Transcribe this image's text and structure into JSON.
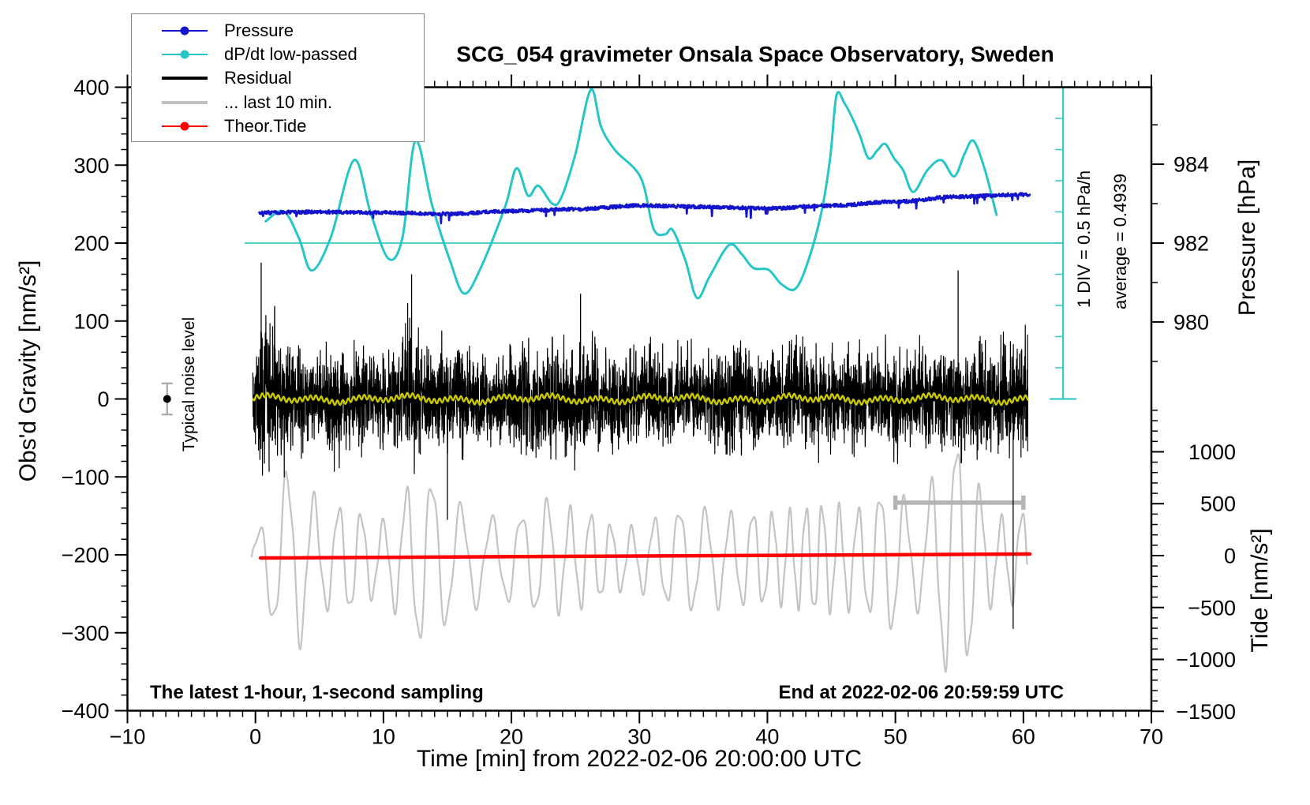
{
  "title": "SCG_054 gravimeter Onsala Space Observatory, Sweden",
  "legend": {
    "items": [
      {
        "label": "Pressure",
        "color": "#1414cd",
        "line_thickness": 2,
        "dot": true
      },
      {
        "label": "dP/dt low-passed",
        "color": "#26c6c6",
        "line_thickness": 2,
        "dot": true
      },
      {
        "label": "Residual",
        "color": "#000000",
        "line_thickness": 4,
        "dot": false
      },
      {
        "label": "... last 10 min.",
        "color": "#c0c0c0",
        "line_thickness": 4,
        "dot": false
      },
      {
        "label": "Theor.Tide",
        "color": "#ff0000",
        "line_thickness": 2,
        "dot": true
      }
    ]
  },
  "annotations": {
    "noise_marker_label": "Typical noise level",
    "div_scale_label": "1 DIV = 0.5 hPa/h",
    "average_label": "average = 0.4939",
    "sampling_note": "The latest 1-hour, 1-second sampling",
    "end_note": "End at 2022-02-06 20:59:59 UTC"
  },
  "chart_data": {
    "type": "line",
    "title": "SCG_054 gravimeter Onsala Space Observatory, Sweden",
    "xlabel": "Time [min] from 2022-02-06 20:00:00 UTC",
    "ylabel_left": "Obs'd Gravity [nm/s²]",
    "ylabel_right_top": "Pressure [hPa]",
    "ylabel_right_bottom": "Tide [nm/s²]",
    "x_axis": {
      "min": -10,
      "max": 70,
      "major_ticks": [
        -10,
        0,
        10,
        20,
        30,
        40,
        50,
        60,
        70
      ],
      "minor_tick_step": 1
    },
    "y_axis_gravity": {
      "min": -400,
      "max": 400,
      "major_ticks": [
        -400,
        -300,
        -200,
        -100,
        0,
        100,
        200,
        300,
        400
      ],
      "minor_tick_step": 20
    },
    "y_axis_pressure": {
      "major_ticks": [
        980,
        982,
        984
      ],
      "minor_ticks": [
        979,
        981,
        983,
        985
      ]
    },
    "y_axis_tide": {
      "major_ticks": [
        -1500,
        -1000,
        -500,
        0,
        500,
        1000
      ],
      "minor_tick_step": 100,
      "minor_min": -1500,
      "minor_max": 1400
    },
    "axis_mapping": {
      "pressure_ref": {
        "hPa": 982,
        "gravity": 200,
        "gravity_per_hPa": 50.6
      },
      "dpdt_ref": {
        "zero_at_gravity": 200,
        "gravity_per_hPa_per_h": 80,
        "hPa_per_h_per_div": 0.5,
        "divisions": 10
      },
      "tide_ref": {
        "gravity_at_zero": -201,
        "gravity_per_tide_unit": 0.1332
      }
    },
    "series": {
      "pressure": {
        "name": "Pressure",
        "color": "#1414cd",
        "axis": "hPa",
        "x_minutes": [
          0,
          5,
          10,
          15,
          20,
          25,
          30,
          35,
          40,
          45,
          50,
          55,
          60
        ],
        "hPa": [
          982.77,
          982.79,
          982.77,
          982.74,
          982.81,
          982.86,
          982.95,
          982.92,
          982.88,
          982.95,
          983.05,
          983.18,
          983.23
        ]
      },
      "dpdt": {
        "name": "dP/dt low-passed",
        "color": "#26c6c6",
        "axis": "hPa_per_h",
        "points_t_v": [
          [
            0.8,
            0.35
          ],
          [
            2.2,
            0.51
          ],
          [
            3.4,
            0.08
          ],
          [
            4.4,
            -0.44
          ],
          [
            5.9,
            0.1
          ],
          [
            7.7,
            1.33
          ],
          [
            9.0,
            0.48
          ],
          [
            10.4,
            -0.25
          ],
          [
            11.5,
            0.1
          ],
          [
            12.5,
            1.64
          ],
          [
            13.8,
            0.61
          ],
          [
            15.2,
            -0.28
          ],
          [
            16.3,
            -0.81
          ],
          [
            17.6,
            -0.4
          ],
          [
            19.5,
            0.58
          ],
          [
            20.4,
            1.2
          ],
          [
            21.3,
            0.76
          ],
          [
            22.1,
            0.92
          ],
          [
            23.2,
            0.63
          ],
          [
            23.9,
            0.73
          ],
          [
            25.0,
            1.43
          ],
          [
            26.2,
            2.46
          ],
          [
            27.0,
            1.87
          ],
          [
            28.1,
            1.49
          ],
          [
            30.1,
            1.05
          ],
          [
            31.1,
            0.23
          ],
          [
            32.0,
            0.14
          ],
          [
            32.6,
            0.21
          ],
          [
            33.6,
            -0.28
          ],
          [
            34.5,
            -0.88
          ],
          [
            35.5,
            -0.53
          ],
          [
            37.0,
            -0.03
          ],
          [
            38.0,
            -0.18
          ],
          [
            38.9,
            -0.4
          ],
          [
            40.1,
            -0.43
          ],
          [
            41.1,
            -0.66
          ],
          [
            42.2,
            -0.73
          ],
          [
            43.2,
            -0.28
          ],
          [
            44.2,
            0.48
          ],
          [
            44.9,
            1.36
          ],
          [
            45.4,
            2.37
          ],
          [
            46.0,
            2.25
          ],
          [
            46.6,
            2.02
          ],
          [
            47.2,
            1.74
          ],
          [
            47.9,
            1.36
          ],
          [
            48.6,
            1.49
          ],
          [
            49.2,
            1.59
          ],
          [
            49.9,
            1.36
          ],
          [
            50.6,
            1.17
          ],
          [
            51.4,
            0.82
          ],
          [
            52.5,
            1.17
          ],
          [
            53.6,
            1.33
          ],
          [
            54.6,
            1.07
          ],
          [
            55.4,
            1.43
          ],
          [
            56.1,
            1.64
          ],
          [
            57.0,
            1.17
          ],
          [
            57.9,
            0.45
          ]
        ],
        "average_hPa_per_h": 0.4939
      },
      "residual": {
        "name": "Residual",
        "color": "#000000",
        "axis": "gravity",
        "mean_gravity": 0,
        "lowpass_color": "#c8c800",
        "envelope_t_amp": [
          [
            0,
            100
          ],
          [
            1,
            150
          ],
          [
            2,
            110
          ],
          [
            3,
            95
          ],
          [
            5,
            80
          ],
          [
            7,
            95
          ],
          [
            9,
            80
          ],
          [
            11,
            90
          ],
          [
            12,
            150
          ],
          [
            13,
            95
          ],
          [
            15,
            90
          ],
          [
            17,
            85
          ],
          [
            19,
            75
          ],
          [
            21,
            90
          ],
          [
            23,
            95
          ],
          [
            25,
            100
          ],
          [
            27,
            90
          ],
          [
            29,
            85
          ],
          [
            31,
            95
          ],
          [
            33,
            80
          ],
          [
            35,
            80
          ],
          [
            37,
            95
          ],
          [
            39,
            90
          ],
          [
            41,
            85
          ],
          [
            43,
            90
          ],
          [
            45,
            85
          ],
          [
            47,
            90
          ],
          [
            49,
            85
          ],
          [
            51,
            90
          ],
          [
            53,
            95
          ],
          [
            55,
            105
          ],
          [
            57,
            95
          ],
          [
            59,
            100
          ],
          [
            60.3,
            90
          ]
        ],
        "spikes_t_value": [
          [
            0.45,
            175
          ],
          [
            12.2,
            160
          ],
          [
            15.0,
            -155
          ],
          [
            25.4,
            135
          ],
          [
            54.9,
            165
          ],
          [
            59.2,
            -295
          ]
        ]
      },
      "last10": {
        "name": "... last 10 min.",
        "color": "#c4c4c4",
        "axis": "gravity",
        "actual_window_min": [
          50,
          60
        ],
        "offset_gravity": -205,
        "period_display_min": 1.9,
        "envelope_displayt_amp": [
          [
            0,
            25
          ],
          [
            1,
            70
          ],
          [
            2,
            100
          ],
          [
            3,
            115
          ],
          [
            4,
            90
          ],
          [
            5,
            65
          ],
          [
            6,
            60
          ],
          [
            7,
            70
          ],
          [
            8,
            60
          ],
          [
            9,
            50
          ],
          [
            10,
            45
          ],
          [
            11,
            65
          ],
          [
            12,
            90
          ],
          [
            13,
            110
          ],
          [
            14,
            95
          ],
          [
            15,
            80
          ],
          [
            16,
            65
          ],
          [
            17,
            60
          ],
          [
            18,
            50
          ],
          [
            19,
            50
          ],
          [
            20,
            55
          ],
          [
            21,
            55
          ],
          [
            22,
            70
          ],
          [
            23,
            75
          ],
          [
            24,
            60
          ],
          [
            25,
            60
          ],
          [
            26,
            60
          ],
          [
            27,
            50
          ],
          [
            28,
            42
          ],
          [
            29,
            38
          ],
          [
            30,
            38
          ],
          [
            31,
            48
          ],
          [
            32,
            55
          ],
          [
            33,
            62
          ],
          [
            34,
            65
          ],
          [
            35,
            60
          ],
          [
            36,
            58
          ],
          [
            37,
            55
          ],
          [
            38,
            58
          ],
          [
            39,
            60
          ],
          [
            40,
            58
          ],
          [
            41,
            55
          ],
          [
            42,
            58
          ],
          [
            43,
            65
          ],
          [
            44,
            70
          ],
          [
            45,
            65
          ],
          [
            46,
            62
          ],
          [
            47,
            60
          ],
          [
            48,
            72
          ],
          [
            49,
            85
          ],
          [
            50,
            90
          ],
          [
            51,
            65
          ],
          [
            52,
            60
          ],
          [
            53,
            100
          ],
          [
            54,
            145
          ],
          [
            55,
            150
          ],
          [
            56,
            120
          ],
          [
            57,
            65
          ],
          [
            58,
            48
          ],
          [
            59,
            55
          ],
          [
            60.3,
            60
          ]
        ],
        "window_bar": {
          "gravity": -133,
          "from_min": 50,
          "to_min": 60,
          "color": "#b4b4b4"
        }
      },
      "theor_tide": {
        "name": "Theor.Tide",
        "color": "#ff0000",
        "axis": "tide",
        "points_t_v": [
          [
            0.4,
            -23
          ],
          [
            60.5,
            15
          ]
        ]
      }
    },
    "noise_marker": {
      "t_min": -6.9,
      "gravity": 0,
      "half_range": 20,
      "bar_color": "#a8a8a8"
    },
    "dpdt_scale_bar": {
      "at_min": 63.1,
      "top_gravity": 400,
      "bottom_gravity": 0,
      "divisions": 10,
      "zero_line_from_min": -0.85,
      "color": "#3cc8c8"
    }
  }
}
